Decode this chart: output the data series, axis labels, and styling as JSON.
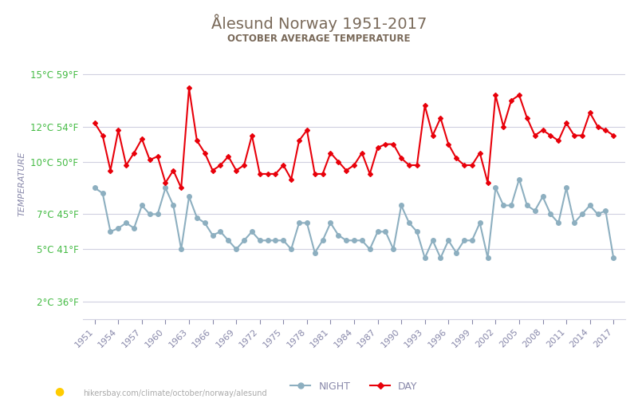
{
  "title": "Ålesund Norway 1951-2017",
  "subtitle": "OCTOBER AVERAGE TEMPERATURE",
  "ylabel": "TEMPERATURE",
  "years": [
    1951,
    1952,
    1953,
    1954,
    1955,
    1956,
    1957,
    1958,
    1959,
    1960,
    1961,
    1962,
    1963,
    1964,
    1965,
    1966,
    1967,
    1968,
    1969,
    1970,
    1971,
    1972,
    1973,
    1974,
    1975,
    1976,
    1977,
    1978,
    1979,
    1980,
    1981,
    1982,
    1983,
    1984,
    1985,
    1986,
    1987,
    1988,
    1989,
    1990,
    1991,
    1992,
    1993,
    1994,
    1995,
    1996,
    1997,
    1998,
    1999,
    2000,
    2001,
    2002,
    2003,
    2004,
    2005,
    2006,
    2007,
    2008,
    2009,
    2010,
    2011,
    2012,
    2013,
    2014,
    2015,
    2016,
    2017
  ],
  "day_temps": [
    12.2,
    11.5,
    9.5,
    11.8,
    9.8,
    10.5,
    11.3,
    10.1,
    10.3,
    8.8,
    9.5,
    8.5,
    14.2,
    11.2,
    10.5,
    9.5,
    9.8,
    10.3,
    9.5,
    9.8,
    11.5,
    9.3,
    9.3,
    9.3,
    9.8,
    9.0,
    11.2,
    11.8,
    9.3,
    9.3,
    10.5,
    10.0,
    9.5,
    9.8,
    10.5,
    9.3,
    10.8,
    11.0,
    11.0,
    10.2,
    9.8,
    9.8,
    13.2,
    11.5,
    12.5,
    11.0,
    10.2,
    9.8,
    9.8,
    10.5,
    8.8,
    13.8,
    12.0,
    13.5,
    13.8,
    12.5,
    11.5,
    11.8,
    11.5,
    11.2,
    12.2,
    11.5,
    11.5,
    12.8,
    12.0,
    11.8,
    11.5
  ],
  "night_temps": [
    8.5,
    8.2,
    6.0,
    6.2,
    6.5,
    6.2,
    7.5,
    7.0,
    7.0,
    8.5,
    7.5,
    5.0,
    8.0,
    6.8,
    6.5,
    5.8,
    6.0,
    5.5,
    5.0,
    5.5,
    6.0,
    5.5,
    5.5,
    5.5,
    5.5,
    5.0,
    6.5,
    6.5,
    4.8,
    5.5,
    6.5,
    5.8,
    5.5,
    5.5,
    5.5,
    5.0,
    6.0,
    6.0,
    5.0,
    7.5,
    6.5,
    6.0,
    4.5,
    5.5,
    4.5,
    5.5,
    4.8,
    5.5,
    5.5,
    6.5,
    4.5,
    8.5,
    7.5,
    7.5,
    9.0,
    7.5,
    7.2,
    8.0,
    7.0,
    6.5,
    8.5,
    6.5,
    7.0,
    7.5,
    7.0,
    7.2,
    4.5
  ],
  "day_color": "#e8000a",
  "night_color": "#8dafc0",
  "day_marker": "D",
  "night_marker": "o",
  "day_marker_size": 3,
  "night_marker_size": 4,
  "line_width": 1.5,
  "title_color": "#7a6a5a",
  "subtitle_color": "#7a6a5a",
  "ylabel_color": "#8888aa",
  "tick_color_green": "#44bb44",
  "tick_color_blue": "#8888aa",
  "background_color": "#ffffff",
  "grid_color": "#d0d0e0",
  "yticks_c": [
    2,
    5,
    7,
    10,
    12,
    15
  ],
  "yticks_f": [
    36,
    41,
    45,
    50,
    54,
    59
  ],
  "ylim": [
    1.0,
    16.5
  ],
  "xlim_left": 1949.5,
  "xlim_right": 2018.5,
  "legend_night": "NIGHT",
  "legend_day": "DAY",
  "footer_text": "hikersbay.com/climate/october/norway/alesund"
}
